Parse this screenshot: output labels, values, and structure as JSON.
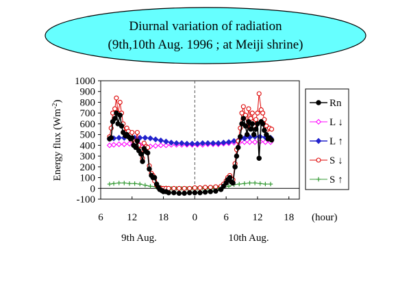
{
  "title": {
    "line1": "Diurnal variation of radiation",
    "line2": "(9th,10th Aug. 1996 ; at Meiji shrine)"
  },
  "colors": {
    "title_fill": "#66ffff",
    "Rn": "#000000",
    "L_down": "#ff00ff",
    "L_up": "#2222cc",
    "S_down": "#dd0000",
    "S_up": "#339933",
    "midnight_line": "#555555"
  },
  "chart_data": {
    "type": "line",
    "ylabel": "Energy flux (Wm",
    "ylabel_sup": "-2",
    "ylabel_close": ")",
    "ylim": [
      -100,
      1000
    ],
    "yticks": [
      "1000",
      "900",
      "800",
      "700",
      "600",
      "500",
      "400",
      "300",
      "200",
      "100",
      "0",
      "-100"
    ],
    "xlim": [
      6,
      44
    ],
    "xticks": [
      "6",
      "12",
      "18",
      "0",
      "6",
      "12",
      "18"
    ],
    "x_unit": "(hour)",
    "day_labels": [
      "9th Aug.",
      "10th Aug."
    ],
    "grid": false,
    "legend_position": "right",
    "series": [
      {
        "name": "Rn",
        "legend": "Rn",
        "marker": "filled-circle",
        "x": [
          7.7,
          8.0,
          8.3,
          8.7,
          9.0,
          9.3,
          9.7,
          10.0,
          10.3,
          10.7,
          11.0,
          11.3,
          11.7,
          12.0,
          12.3,
          12.7,
          13.0,
          13.3,
          13.7,
          14.0,
          14.3,
          14.7,
          15.0,
          15.3,
          15.7,
          16.0,
          16.3,
          16.7,
          17.0,
          17.3,
          17.7,
          18.0,
          18.5,
          19.0,
          20.0,
          21.0,
          22.0,
          23.0,
          24.0,
          25.0,
          26.0,
          27.0,
          28.0,
          29.0,
          29.5,
          30.0,
          30.3,
          30.7,
          31.0,
          31.3,
          31.7,
          32.0,
          32.3,
          32.7,
          33.0,
          33.3,
          33.7,
          34.0,
          34.3,
          34.7,
          35.0,
          35.3,
          35.7,
          36.0,
          36.3,
          36.7,
          37.0,
          37.3,
          37.7,
          38.0,
          38.3,
          38.7
        ],
        "y": [
          460,
          470,
          620,
          650,
          700,
          600,
          680,
          580,
          520,
          490,
          500,
          480,
          460,
          470,
          400,
          380,
          440,
          350,
          320,
          250,
          370,
          340,
          330,
          180,
          120,
          100,
          100,
          40,
          10,
          -10,
          -20,
          -30,
          -30,
          -40,
          -40,
          -45,
          -45,
          -40,
          -40,
          -40,
          -35,
          -30,
          -25,
          -10,
          20,
          50,
          80,
          100,
          60,
          50,
          200,
          300,
          380,
          480,
          600,
          650,
          580,
          500,
          620,
          550,
          600,
          500,
          550,
          600,
          280,
          620,
          600,
          540,
          500,
          460,
          470,
          450
        ]
      },
      {
        "name": "L↓",
        "legend": "L ↓",
        "marker": "open-diamond",
        "x": [
          7.7,
          8.5,
          9.5,
          10.5,
          11.5,
          12.5,
          13.5,
          14.5,
          15.5,
          16.5,
          17.5,
          18.5,
          19.5,
          20.5,
          21.5,
          22.5,
          23.5,
          24.5,
          25.5,
          26.5,
          27.5,
          28.5,
          29.5,
          30.5,
          31.5,
          32.5,
          33.5,
          34.5,
          35.5,
          36.5,
          37.5,
          38.5
        ],
        "y": [
          400,
          405,
          410,
          410,
          415,
          410,
          405,
          400,
          390,
          395,
          400,
          400,
          405,
          405,
          405,
          405,
          405,
          405,
          405,
          410,
          410,
          410,
          415,
          420,
          425,
          425,
          430,
          430,
          430,
          435,
          430,
          430
        ]
      },
      {
        "name": "L↑",
        "legend": "L ↑",
        "marker": "filled-diamond",
        "x": [
          7.7,
          8.5,
          9.5,
          10.5,
          11.5,
          12.5,
          13.5,
          14.5,
          15.5,
          16.5,
          17.5,
          18.5,
          19.5,
          20.5,
          21.5,
          22.5,
          23.5,
          24.5,
          25.5,
          26.5,
          27.5,
          28.5,
          29.5,
          30.5,
          31.5,
          32.5,
          33.5,
          34.5,
          35.5,
          36.5,
          37.5,
          38.5
        ],
        "y": [
          460,
          465,
          470,
          470,
          470,
          470,
          470,
          470,
          465,
          455,
          445,
          435,
          425,
          420,
          420,
          415,
          415,
          415,
          420,
          420,
          420,
          420,
          425,
          430,
          440,
          455,
          465,
          475,
          480,
          480,
          475,
          470
        ]
      },
      {
        "name": "S↓",
        "legend": "S ↓",
        "marker": "open-circle",
        "x": [
          7.7,
          8.0,
          8.3,
          8.7,
          9.0,
          9.3,
          9.7,
          10.0,
          10.3,
          10.7,
          11.0,
          11.3,
          11.7,
          12.0,
          12.3,
          12.7,
          13.0,
          13.3,
          13.7,
          14.0,
          14.3,
          14.7,
          15.0,
          15.3,
          15.7,
          16.0,
          16.3,
          16.7,
          17.0,
          17.3,
          17.7,
          18.0,
          18.5,
          19.0,
          20.0,
          21.0,
          22.0,
          23.0,
          24.0,
          25.0,
          26.0,
          27.0,
          28.0,
          29.0,
          29.5,
          30.0,
          30.3,
          30.7,
          31.0,
          31.3,
          31.7,
          32.0,
          32.3,
          32.7,
          33.0,
          33.3,
          33.7,
          34.0,
          34.3,
          34.7,
          35.0,
          35.3,
          35.7,
          36.0,
          36.3,
          36.7,
          37.0,
          37.3,
          37.7,
          38.0,
          38.3,
          38.7
        ],
        "y": [
          480,
          560,
          700,
          740,
          840,
          700,
          800,
          700,
          600,
          520,
          560,
          530,
          500,
          520,
          440,
          430,
          520,
          400,
          360,
          280,
          420,
          390,
          380,
          210,
          140,
          120,
          70,
          30,
          10,
          5,
          0,
          0,
          0,
          0,
          0,
          0,
          0,
          0,
          5,
          5,
          10,
          10,
          15,
          20,
          40,
          70,
          100,
          120,
          90,
          80,
          230,
          360,
          440,
          560,
          700,
          760,
          680,
          580,
          740,
          650,
          700,
          580,
          640,
          700,
          880,
          730,
          700,
          640,
          580,
          550,
          560,
          550
        ]
      },
      {
        "name": "S↑",
        "legend": "S ↑",
        "marker": "plus",
        "x": [
          7.7,
          8.5,
          9.5,
          10.5,
          11.5,
          12.5,
          13.5,
          14.5,
          15.5,
          16.5,
          17.5,
          18.5,
          19.5,
          20.5,
          21.5,
          22.5,
          23.5,
          24.5,
          25.5,
          26.5,
          27.5,
          28.5,
          29.5,
          30.5,
          31.5,
          32.5,
          33.5,
          34.5,
          35.5,
          36.5,
          37.5,
          38.5
        ],
        "y": [
          40,
          45,
          50,
          50,
          45,
          45,
          40,
          30,
          20,
          15,
          10,
          5,
          0,
          0,
          0,
          0,
          0,
          0,
          0,
          0,
          5,
          5,
          10,
          20,
          35,
          40,
          45,
          50,
          50,
          45,
          40,
          40
        ]
      }
    ]
  }
}
